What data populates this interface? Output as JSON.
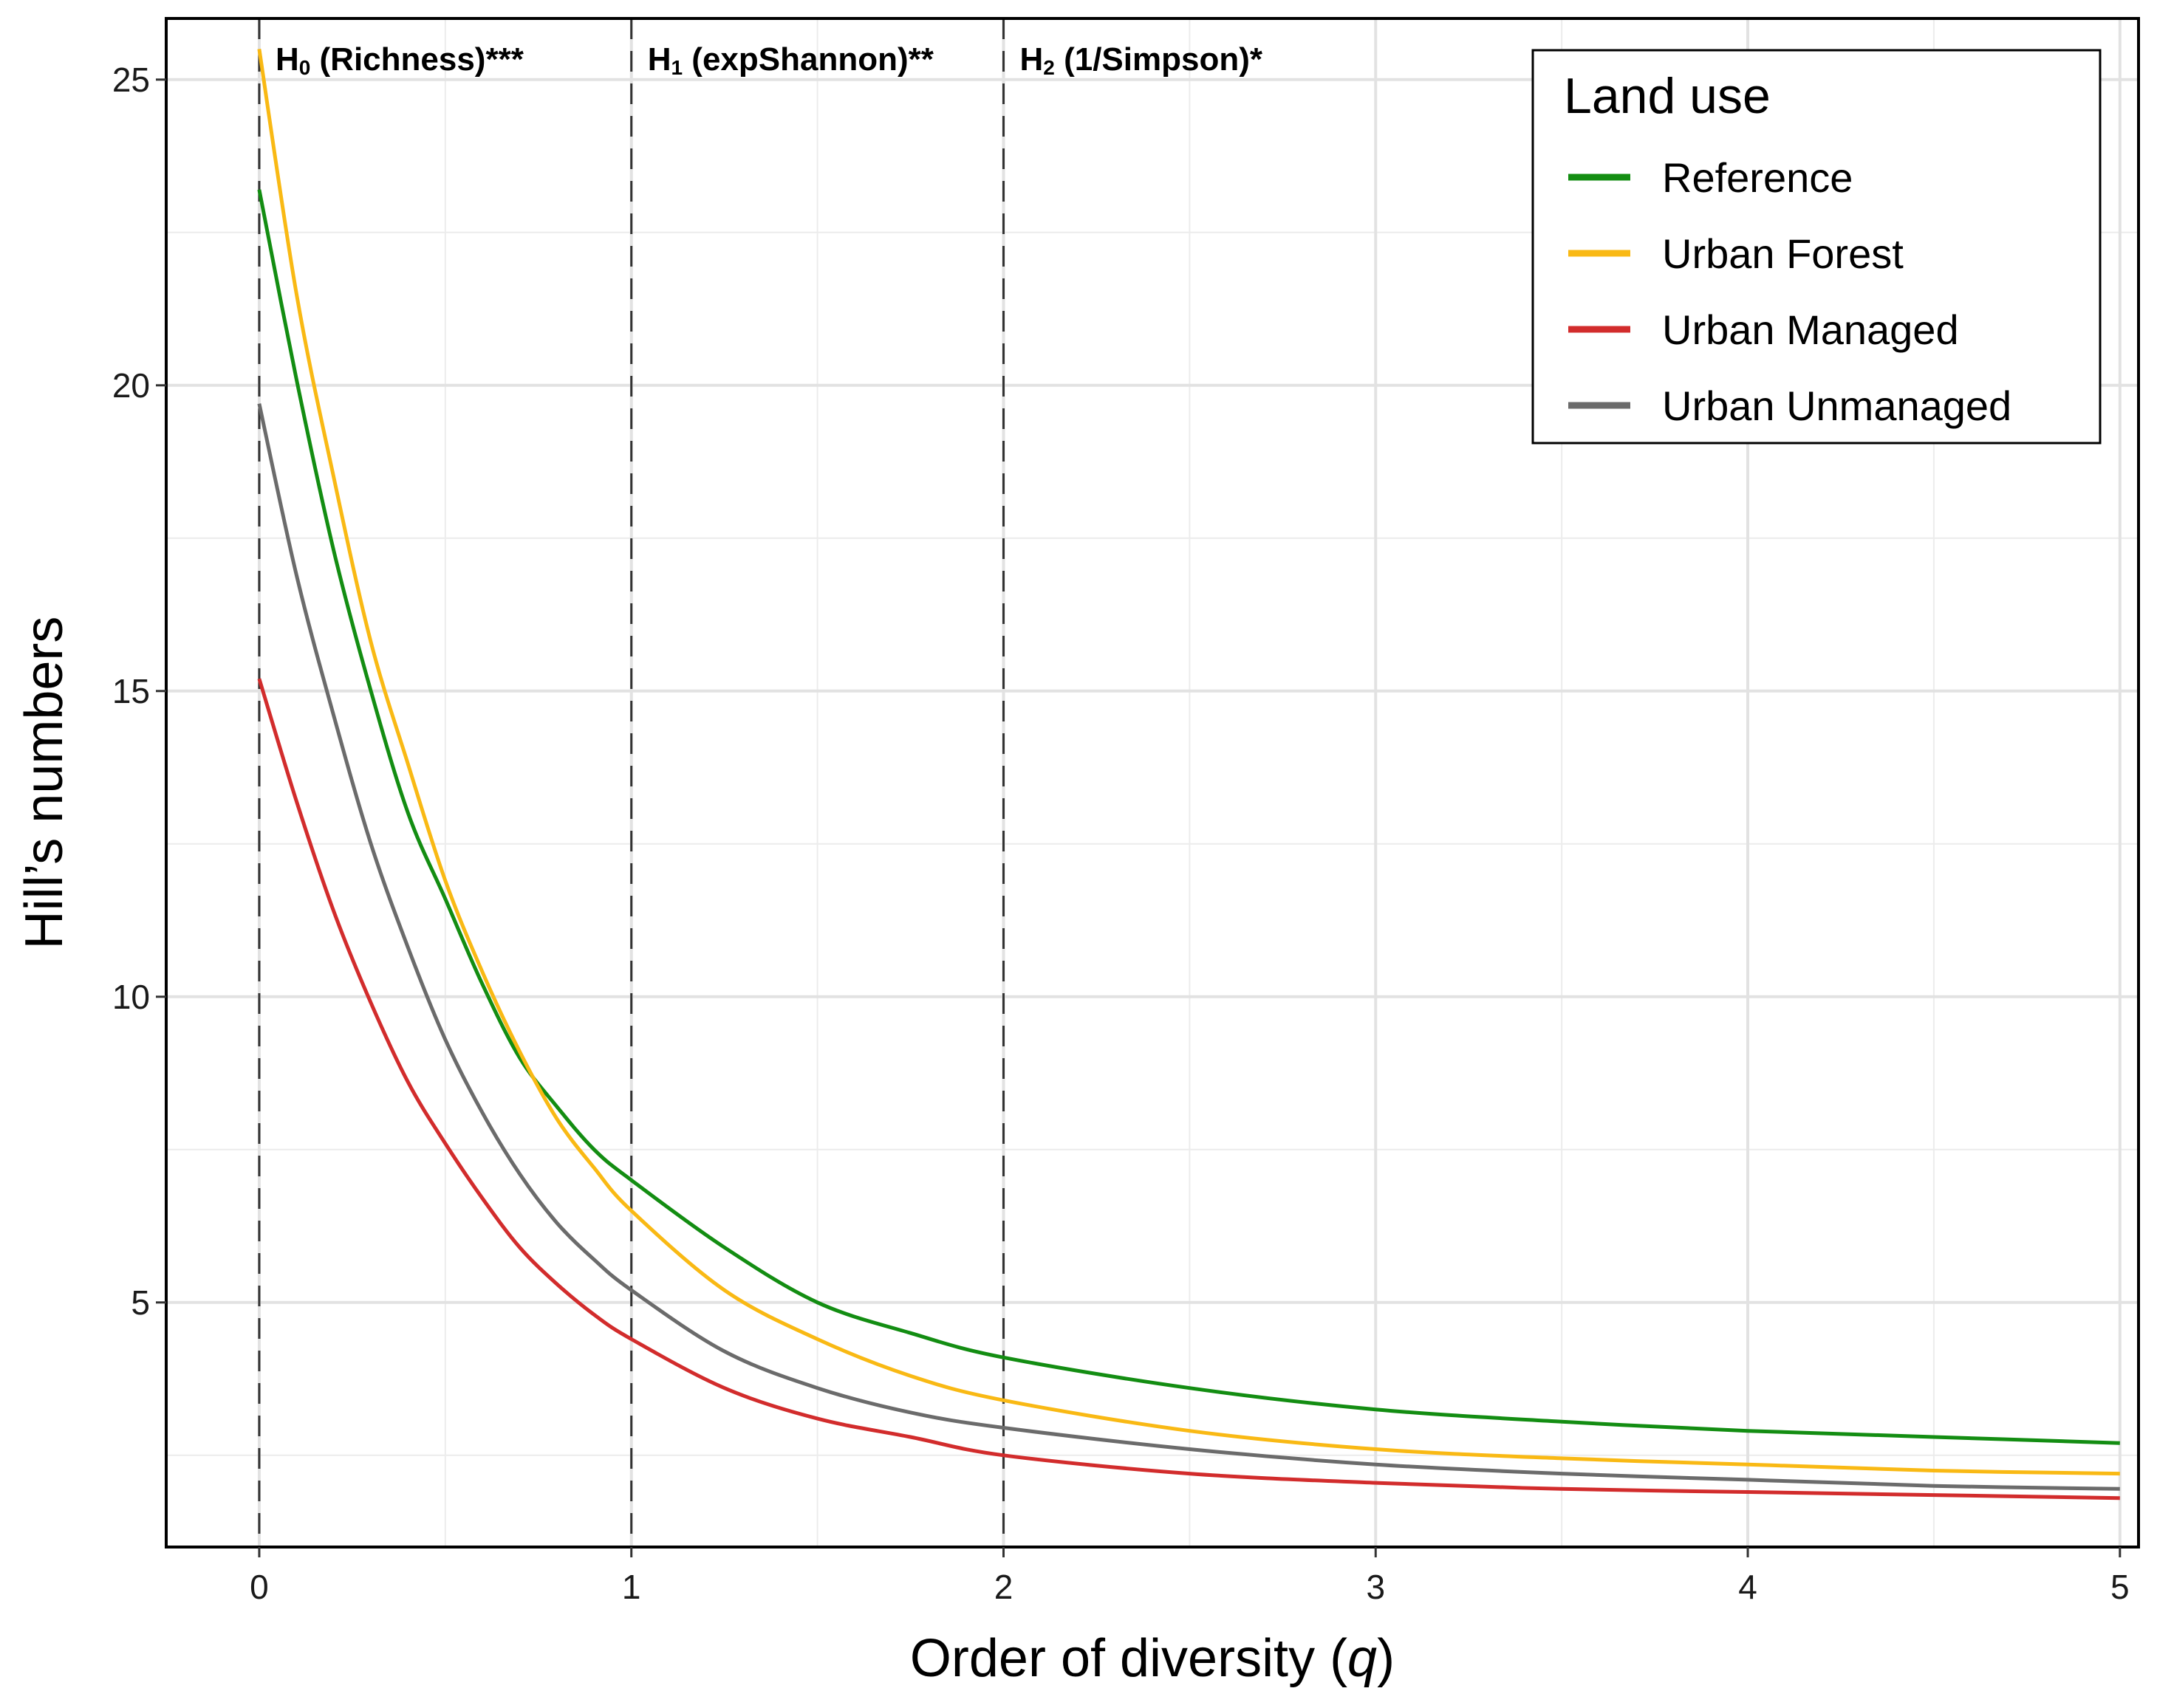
{
  "chart_data": {
    "type": "line",
    "xlabel_prefix": "Order of diversity (",
    "xlabel_var": "q",
    "xlabel_suffix": ")",
    "ylabel": "Hill’s numbers",
    "xlim": [
      -0.25,
      5.05
    ],
    "ylim": [
      1.0,
      26.0
    ],
    "x_ticks": [
      0,
      1,
      2,
      3,
      4,
      5
    ],
    "x_tick_labels": [
      "0",
      "1",
      "2",
      "3",
      "4",
      "5"
    ],
    "y_ticks": [
      5,
      10,
      15,
      20,
      25
    ],
    "y_tick_labels": [
      "5",
      "10",
      "15",
      "20",
      "25"
    ],
    "grid": true,
    "vlines": [
      {
        "x": 0,
        "label_main": "H",
        "label_sub": "0",
        "label_rest": " (Richness)***"
      },
      {
        "x": 1,
        "label_main": "H",
        "label_sub": "1",
        "label_rest": " (expShannon)**"
      },
      {
        "x": 2,
        "label_main": "H",
        "label_sub": "2",
        "label_rest": " (1/Simpson)*"
      }
    ],
    "legend": {
      "title": "Land use",
      "position": "top-right"
    },
    "x": [
      0,
      0.1,
      0.2,
      0.3,
      0.4,
      0.5,
      0.6,
      0.7,
      0.8,
      0.9,
      1.0,
      1.25,
      1.5,
      1.75,
      2.0,
      2.5,
      3.0,
      3.5,
      4.0,
      4.5,
      5.0
    ],
    "series": [
      {
        "name": "Reference",
        "color": "#138d12",
        "values": [
          23.2,
          20.1,
          17.3,
          15.0,
          13.0,
          11.6,
          10.2,
          9.0,
          8.2,
          7.5,
          7.0,
          5.9,
          5.0,
          4.5,
          4.1,
          3.6,
          3.25,
          3.05,
          2.9,
          2.8,
          2.7
        ]
      },
      {
        "name": "Urban Forest",
        "color": "#f9b914",
        "values": [
          25.5,
          21.5,
          18.5,
          15.8,
          13.8,
          11.9,
          10.4,
          9.1,
          8.0,
          7.2,
          6.5,
          5.2,
          4.4,
          3.8,
          3.4,
          2.9,
          2.6,
          2.45,
          2.35,
          2.25,
          2.2
        ]
      },
      {
        "name": "Urban Managed",
        "color": "#d22c2c",
        "values": [
          15.2,
          13.2,
          11.4,
          9.9,
          8.6,
          7.6,
          6.7,
          5.9,
          5.3,
          4.8,
          4.4,
          3.6,
          3.1,
          2.8,
          2.5,
          2.2,
          2.05,
          1.95,
          1.9,
          1.85,
          1.8
        ]
      },
      {
        "name": "Urban Unmanaged",
        "color": "#6b6b6b",
        "values": [
          19.7,
          16.9,
          14.6,
          12.5,
          10.8,
          9.3,
          8.1,
          7.1,
          6.3,
          5.7,
          5.2,
          4.2,
          3.6,
          3.2,
          2.95,
          2.6,
          2.35,
          2.2,
          2.1,
          2.0,
          1.95
        ]
      }
    ]
  }
}
